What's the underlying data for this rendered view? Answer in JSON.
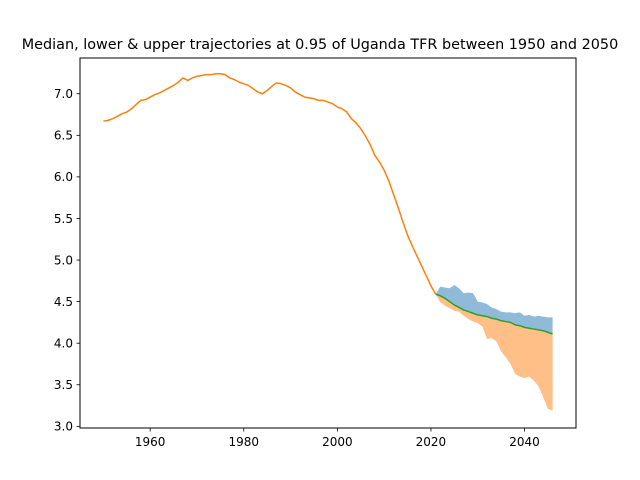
{
  "chart_data": {
    "type": "line",
    "title": "Median, lower & upper trajectories at 0.95 of Uganda TFR between 1950 and 2050",
    "xlabel": "",
    "ylabel": "",
    "xlim": [
      1945,
      2051
    ],
    "ylim": [
      2.98,
      7.43
    ],
    "xticks": [
      1960,
      1980,
      2000,
      2020,
      2040
    ],
    "yticks": [
      3.0,
      3.5,
      4.0,
      4.5,
      5.0,
      5.5,
      6.0,
      6.5,
      7.0
    ],
    "grid": false,
    "legend": "none",
    "series": [
      {
        "role": "observed",
        "color": "#ff7f0e",
        "x": [
          1950,
          1951,
          1952,
          1953,
          1954,
          1955,
          1956,
          1957,
          1958,
          1959,
          1960,
          1961,
          1962,
          1963,
          1964,
          1965,
          1966,
          1967,
          1968,
          1969,
          1970,
          1971,
          1972,
          1973,
          1974,
          1975,
          1976,
          1977,
          1978,
          1979,
          1980,
          1981,
          1982,
          1983,
          1984,
          1985,
          1986,
          1987,
          1988,
          1989,
          1990,
          1991,
          1992,
          1993,
          1994,
          1995,
          1996,
          1997,
          1998,
          1999,
          2000,
          2001,
          2002,
          2003,
          2004,
          2005,
          2006,
          2007,
          2008,
          2009,
          2010,
          2011,
          2012,
          2013,
          2014,
          2015,
          2016,
          2017,
          2018,
          2019,
          2020,
          2021
        ],
        "y": [
          6.67,
          6.68,
          6.7,
          6.73,
          6.76,
          6.78,
          6.82,
          6.87,
          6.92,
          6.93,
          6.96,
          6.99,
          7.01,
          7.04,
          7.07,
          7.1,
          7.14,
          7.19,
          7.16,
          7.19,
          7.21,
          7.22,
          7.23,
          7.23,
          7.24,
          7.24,
          7.23,
          7.19,
          7.17,
          7.14,
          7.12,
          7.1,
          7.06,
          7.02,
          7.0,
          7.04,
          7.09,
          7.13,
          7.12,
          7.1,
          7.07,
          7.02,
          6.99,
          6.96,
          6.95,
          6.94,
          6.92,
          6.92,
          6.9,
          6.88,
          6.84,
          6.82,
          6.78,
          6.7,
          6.65,
          6.58,
          6.49,
          6.39,
          6.26,
          6.18,
          6.08,
          5.95,
          5.79,
          5.63,
          5.46,
          5.3,
          5.17,
          5.05,
          4.93,
          4.81,
          4.69,
          4.59
        ]
      },
      {
        "role": "median",
        "color": "#2ca02c",
        "x": [
          2021,
          2022,
          2023,
          2024,
          2025,
          2026,
          2027,
          2028,
          2029,
          2030,
          2031,
          2032,
          2033,
          2034,
          2035,
          2036,
          2037,
          2038,
          2039,
          2040,
          2041,
          2042,
          2043,
          2044,
          2045,
          2046
        ],
        "y": [
          4.59,
          4.57,
          4.54,
          4.5,
          4.46,
          4.43,
          4.4,
          4.38,
          4.36,
          4.34,
          4.33,
          4.32,
          4.3,
          4.29,
          4.27,
          4.26,
          4.25,
          4.22,
          4.21,
          4.19,
          4.18,
          4.17,
          4.16,
          4.15,
          4.13,
          4.11
        ]
      }
    ],
    "bands": [
      {
        "role": "upper",
        "color": "#1f77b4",
        "opacity": 0.5,
        "x": [
          2021,
          2022,
          2023,
          2024,
          2025,
          2026,
          2027,
          2028,
          2029,
          2030,
          2031,
          2032,
          2033,
          2034,
          2035,
          2036,
          2037,
          2038,
          2039,
          2040,
          2041,
          2042,
          2043,
          2044,
          2045,
          2046
        ],
        "lower": [
          4.59,
          4.57,
          4.54,
          4.5,
          4.46,
          4.43,
          4.4,
          4.38,
          4.36,
          4.34,
          4.33,
          4.32,
          4.3,
          4.29,
          4.27,
          4.26,
          4.25,
          4.22,
          4.21,
          4.19,
          4.18,
          4.17,
          4.16,
          4.15,
          4.13,
          4.11
        ],
        "upper": [
          4.59,
          4.68,
          4.67,
          4.66,
          4.7,
          4.66,
          4.6,
          4.61,
          4.6,
          4.5,
          4.49,
          4.47,
          4.43,
          4.41,
          4.38,
          4.37,
          4.37,
          4.36,
          4.37,
          4.33,
          4.34,
          4.32,
          4.33,
          4.32,
          4.31,
          4.31
        ]
      },
      {
        "role": "lower",
        "color": "#ff7f0e",
        "opacity": 0.5,
        "x": [
          2021,
          2022,
          2023,
          2024,
          2025,
          2026,
          2027,
          2028,
          2029,
          2030,
          2031,
          2032,
          2033,
          2034,
          2035,
          2036,
          2037,
          2038,
          2039,
          2040,
          2041,
          2042,
          2043,
          2044,
          2045,
          2046
        ],
        "lower": [
          4.59,
          4.49,
          4.45,
          4.42,
          4.39,
          4.38,
          4.33,
          4.29,
          4.26,
          4.24,
          4.2,
          4.05,
          4.06,
          4.02,
          3.9,
          3.83,
          3.75,
          3.63,
          3.6,
          3.58,
          3.6,
          3.55,
          3.48,
          3.35,
          3.21,
          3.19
        ],
        "upper": [
          4.59,
          4.57,
          4.54,
          4.5,
          4.46,
          4.43,
          4.4,
          4.38,
          4.36,
          4.34,
          4.33,
          4.32,
          4.3,
          4.29,
          4.27,
          4.26,
          4.25,
          4.22,
          4.21,
          4.19,
          4.18,
          4.17,
          4.16,
          4.15,
          4.13,
          4.11
        ]
      }
    ]
  }
}
